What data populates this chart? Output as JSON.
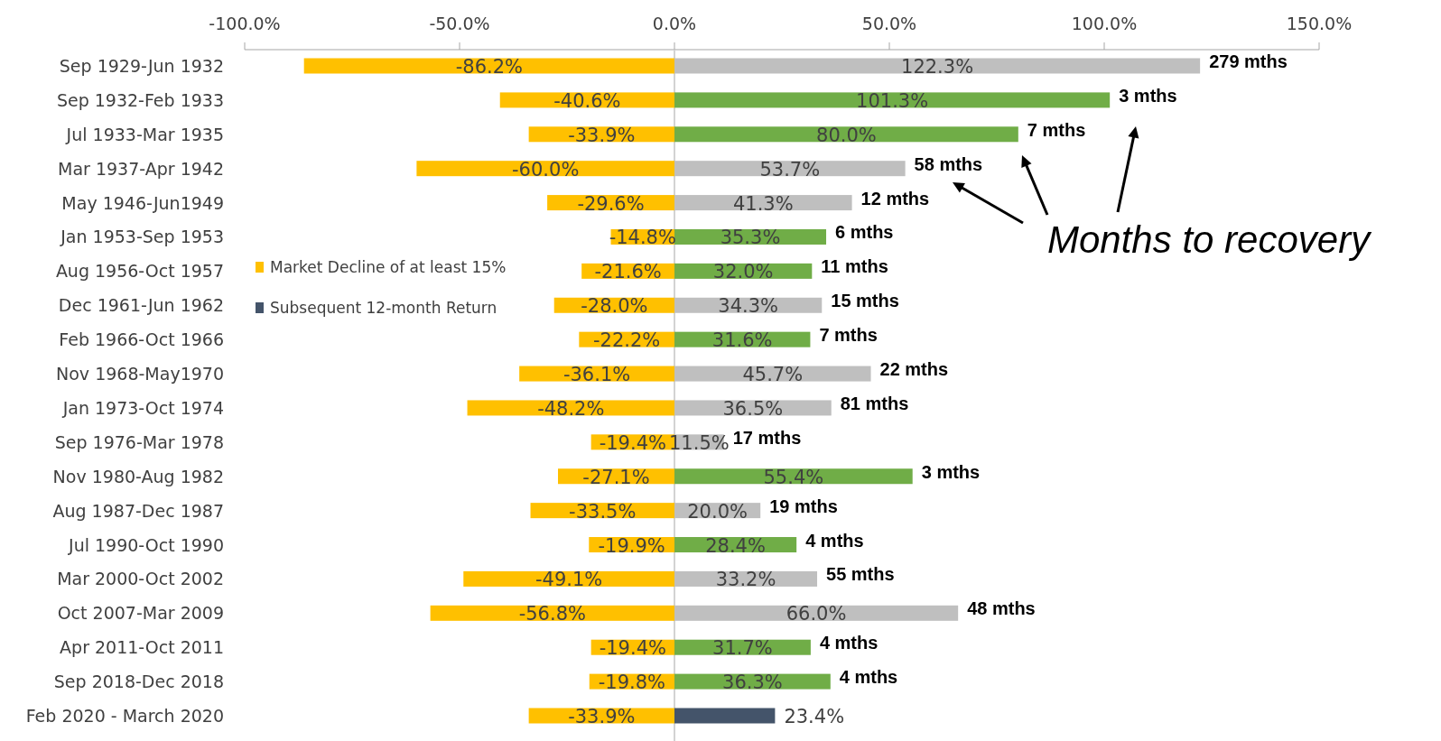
{
  "chart_data": {
    "type": "bar",
    "orientation": "horizontal",
    "stacked": true,
    "legend": "left",
    "categories": [
      "Sep 1929-Jun 1932",
      "Sep 1932-Feb 1933",
      "Jul 1933-Mar 1935",
      "Mar 1937-Apr 1942",
      "May 1946-Jun1949",
      "Jan 1953-Sep 1953",
      "Aug 1956-Oct 1957",
      "Dec 1961-Jun 1962",
      "Feb 1966-Oct 1966",
      "Nov 1968-May1970",
      "Jan 1973-Oct 1974",
      "Sep 1976-Mar 1978",
      "Nov 1980-Aug 1982",
      "Aug 1987-Dec 1987",
      "Jul 1990-Oct 1990",
      "Mar 2000-Oct 2002",
      "Oct 2007-Mar 2009",
      "Apr 2011-Oct 2011",
      "Sep 2018-Dec 2018",
      "Feb 2020 - March 2020"
    ],
    "xlim": [
      -100,
      150
    ],
    "xticks": [
      {
        "value": -100,
        "label": "-100.0%"
      },
      {
        "value": -50,
        "label": "-50.0%"
      },
      {
        "value": 0,
        "label": "0.0%"
      },
      {
        "value": 50,
        "label": "50.0%"
      },
      {
        "value": 100,
        "label": "100.0%"
      },
      {
        "value": 150,
        "label": "150.0%"
      }
    ],
    "series": [
      {
        "name": "Market Decline of at least 15%",
        "color": "#ffc000",
        "values": [
          -86.2,
          -40.6,
          -33.9,
          -60.0,
          -29.6,
          -14.8,
          -21.6,
          -28.0,
          -22.2,
          -36.1,
          -48.2,
          -19.4,
          -27.1,
          -33.5,
          -19.9,
          -49.1,
          -56.8,
          -19.4,
          -19.8,
          -33.9
        ],
        "value_labels": [
          "-86.2%",
          "-40.6%",
          "-33.9%",
          "-60.0%",
          "-29.6%",
          "-14.8%",
          "-21.6%",
          "-28.0%",
          "-22.2%",
          "-36.1%",
          "-48.2%",
          "-19.4%",
          "-27.1%",
          "-33.5%",
          "-19.9%",
          "-49.1%",
          "-56.8%",
          "-19.4%",
          "-19.8%",
          "-33.9%"
        ]
      },
      {
        "name": "Subsequent 12-month Return",
        "color": "#44546a",
        "colors": [
          "#bfbfbf",
          "#70ad47",
          "#70ad47",
          "#bfbfbf",
          "#bfbfbf",
          "#70ad47",
          "#70ad47",
          "#bfbfbf",
          "#70ad47",
          "#bfbfbf",
          "#bfbfbf",
          "#bfbfbf",
          "#70ad47",
          "#bfbfbf",
          "#70ad47",
          "#bfbfbf",
          "#bfbfbf",
          "#70ad47",
          "#70ad47",
          "#44546a"
        ],
        "values": [
          122.3,
          101.3,
          80.0,
          53.7,
          41.3,
          35.3,
          32.0,
          34.3,
          31.6,
          45.7,
          36.5,
          11.5,
          55.4,
          20.0,
          28.4,
          33.2,
          66.0,
          31.7,
          36.3,
          23.4
        ],
        "value_labels": [
          "122.3%",
          "101.3%",
          "80.0%",
          "53.7%",
          "41.3%",
          "35.3%",
          "32.0%",
          "34.3%",
          "31.6%",
          "45.7%",
          "36.5%",
          "11.5%",
          "55.4%",
          "20.0%",
          "28.4%",
          "33.2%",
          "66.0%",
          "31.7%",
          "36.3%",
          "23.4%"
        ]
      }
    ],
    "annotations": [
      {
        "text": "279 mths",
        "x": 122.3,
        "y": "Sep 1929-Jun 1932"
      },
      {
        "text": "3 mths",
        "x": 101.3,
        "y": "Sep 1932-Feb 1933"
      },
      {
        "text": "7 mths",
        "x": 80.0,
        "y": "Jul 1933-Mar 1935"
      },
      {
        "text": "58 mths",
        "x": 53.7,
        "y": "Mar 1937-Apr 1942"
      },
      {
        "text": "12 mths",
        "x": 41.3,
        "y": "May 1946-Jun1949"
      },
      {
        "text": "6 mths",
        "x": 35.3,
        "y": "Jan 1953-Sep 1953"
      },
      {
        "text": "11 mths",
        "x": 32.0,
        "y": "Aug 1956-Oct 1957"
      },
      {
        "text": "15 mths",
        "x": 34.3,
        "y": "Dec 1961-Jun 1962"
      },
      {
        "text": "7 mths",
        "x": 31.6,
        "y": "Feb 1966-Oct 1966"
      },
      {
        "text": "22 mths",
        "x": 45.7,
        "y": "Nov 1968-May1970"
      },
      {
        "text": "81 mths",
        "x": 36.5,
        "y": "Jan 1973-Oct 1974"
      },
      {
        "text": "17 mths",
        "x": 11.5,
        "y": "Sep 1976-Mar 1978"
      },
      {
        "text": "3 mths",
        "x": 55.4,
        "y": "Nov 1980-Aug 1982"
      },
      {
        "text": "19 mths",
        "x": 20.0,
        "y": "Aug 1987-Dec 1987"
      },
      {
        "text": "4 mths",
        "x": 28.4,
        "y": "Jul 1990-Oct 1990"
      },
      {
        "text": "55 mths",
        "x": 33.2,
        "y": "Mar 2000-Oct 2002"
      },
      {
        "text": "48 mths",
        "x": 66.0,
        "y": "Oct 2007-Mar 2009"
      },
      {
        "text": "4 mths",
        "x": 31.7,
        "y": "Apr 2011-Oct 2011"
      },
      {
        "text": "4 mths",
        "x": 36.3,
        "y": "Sep 2018-Dec 2018"
      },
      "Months to recovery"
    ]
  }
}
